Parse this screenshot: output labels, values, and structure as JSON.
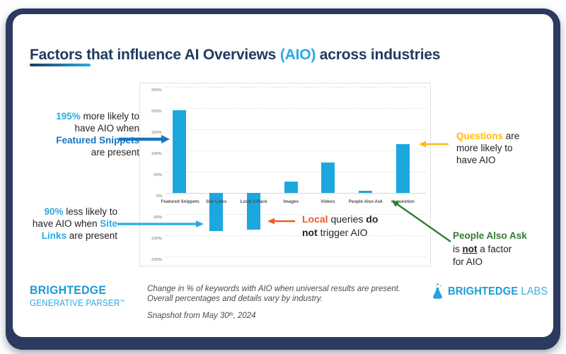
{
  "slide": {
    "title": {
      "pre": "Factors that influence AI Overviews ",
      "highlight": "(AIO)",
      "post": " across industries"
    }
  },
  "chart_data": {
    "type": "bar",
    "title": "",
    "xlabel": "",
    "ylabel": "",
    "categories": [
      "Featured Snippets",
      "Site Links",
      "Local 3-Pack",
      "Images",
      "Videos",
      "People Also Ask",
      "is question"
    ],
    "values": [
      195,
      -90,
      -87,
      27,
      72,
      5,
      115
    ],
    "ylim": [
      -150,
      250
    ],
    "ytick_step": 50,
    "ytick_suffix": "%",
    "grid": true,
    "legend": false,
    "bar_color": "#1CA7DE"
  },
  "annotations": {
    "featured": {
      "value": "195%",
      "rest1": " more likely to",
      "line2": "have AIO when",
      "line3": "Featured Snippets",
      "line4": "are present"
    },
    "site_links": {
      "value": "90%",
      "rest1": " less likely to",
      "line2_pre": "have AIO when ",
      "line2_hl": "Site",
      "line3_hl": "Links",
      "line3_post": " are present"
    },
    "local": {
      "hl": "Local",
      "mid": " queries ",
      "bold1": "do",
      "bold2": "not",
      "post": " trigger AIO"
    },
    "questions": {
      "hl": "Questions",
      "rest1": " are",
      "line2": "more likely to",
      "line3": "have AIO"
    },
    "paa": {
      "line1": "People Also Ask",
      "line2_pre": "is ",
      "line2_bold": "not",
      "line2_post": " a factor",
      "line3": "for AIO"
    }
  },
  "footer": {
    "parser_logo": {
      "line1": "BRIGHTEDGE",
      "line2": "GENERATIVE PARSER",
      "tm": "™"
    },
    "caption": {
      "line1": "Change in % of keywords with AIO when universal results are present.",
      "line2": "Overall percentages and details vary by industry.",
      "snapshot_pre": "Snapshot from May 30",
      "snapshot_sup": "th",
      "snapshot_post": ", 2024"
    },
    "labs_logo": {
      "brand": "BRIGHTEDGE",
      "suffix": " LABS"
    }
  },
  "colors": {
    "frame_navy": "#2B3A5E",
    "title_navy": "#1E3A5F",
    "light_blue": "#29ABE2",
    "mid_blue": "#1B75BC",
    "bar_blue": "#1CA7DE",
    "orange": "#F15A29",
    "yellow": "#FDB913",
    "green": "#2E7D32",
    "logo_blue": "#1B9DD9"
  }
}
